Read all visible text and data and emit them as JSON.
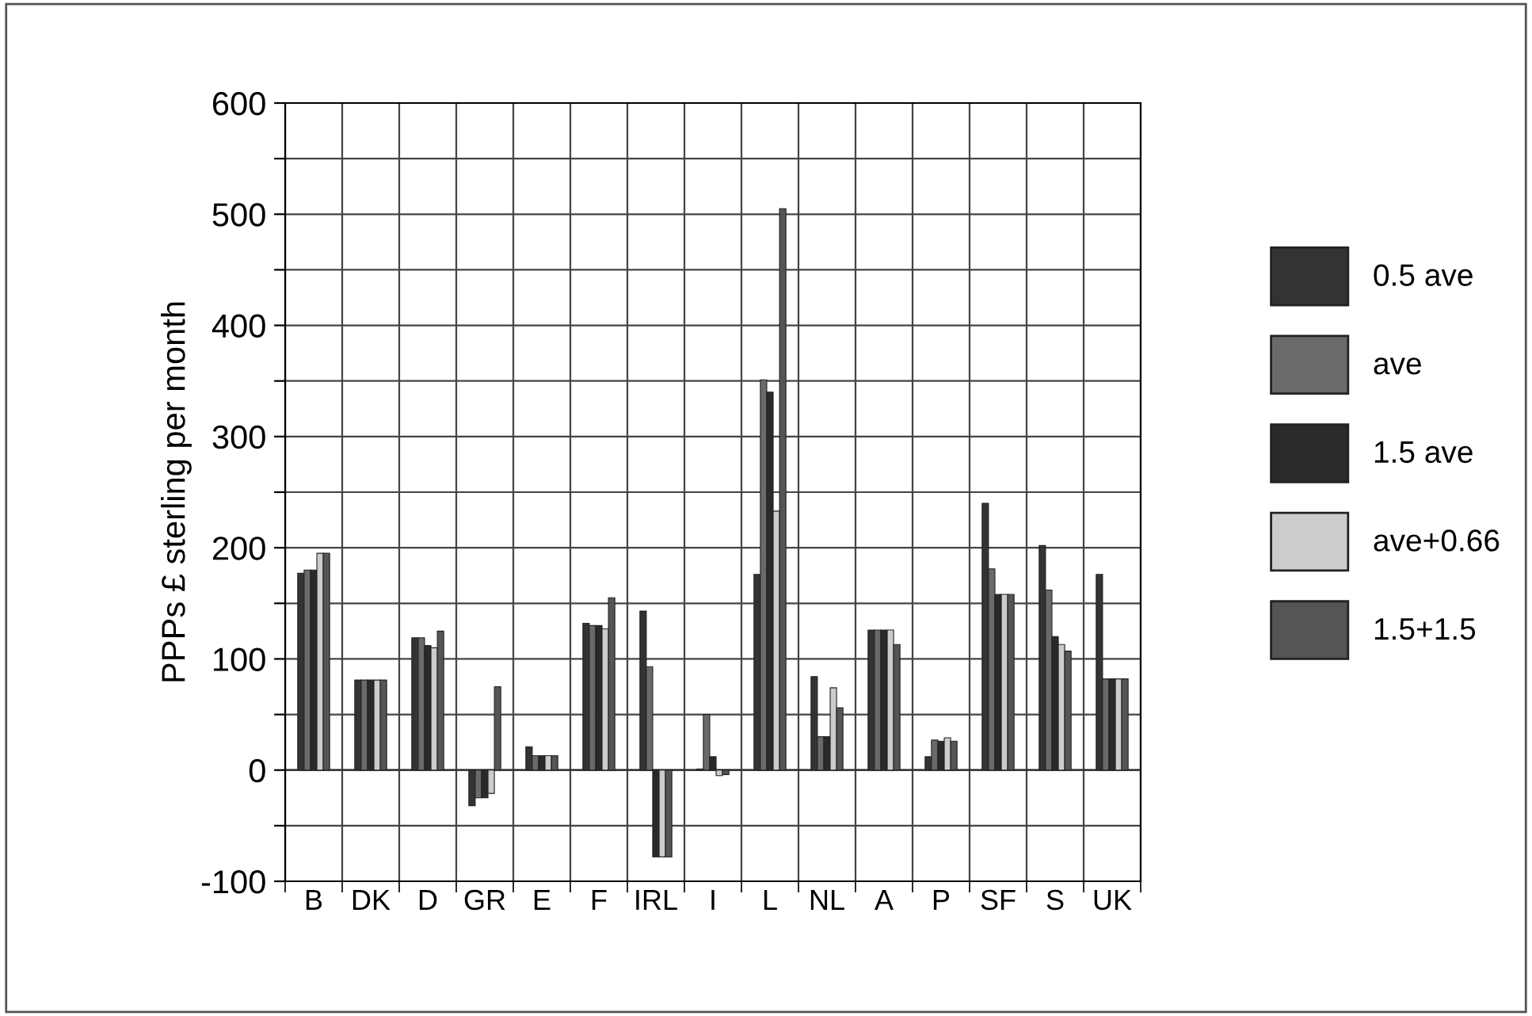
{
  "chart_data": {
    "type": "bar",
    "ylabel": "PPPs £ sterling per month",
    "categories": [
      "B",
      "DK",
      "D",
      "GR",
      "E",
      "F",
      "IRL",
      "I",
      "L",
      "NL",
      "A",
      "P",
      "SF",
      "S",
      "UK"
    ],
    "series": [
      {
        "name": "0.5 ave",
        "color": "#333333",
        "values": [
          177,
          81,
          119,
          -32,
          21,
          132,
          143,
          1,
          176,
          84,
          126,
          12,
          240,
          202,
          176
        ]
      },
      {
        "name": "ave",
        "color": "#6a6a6a",
        "values": [
          180,
          81,
          119,
          -25,
          13,
          130,
          93,
          50,
          351,
          30,
          126,
          27,
          181,
          162,
          82
        ]
      },
      {
        "name": "1.5 ave",
        "color": "#2a2a2a",
        "values": [
          180,
          81,
          112,
          -25,
          13,
          130,
          -78,
          12,
          340,
          30,
          126,
          26,
          158,
          120,
          82
        ]
      },
      {
        "name": "ave+0.66",
        "color": "#cccccc",
        "values": [
          195,
          81,
          110,
          -21,
          13,
          127,
          -78,
          -5,
          233,
          74,
          126,
          29,
          158,
          113,
          82
        ]
      },
      {
        "name": "1.5+1.5",
        "color": "#555555",
        "values": [
          195,
          81,
          125,
          75,
          13,
          155,
          -78,
          -4,
          505,
          56,
          113,
          26,
          158,
          107,
          82
        ]
      }
    ],
    "ylim": [
      -100,
      600
    ],
    "yticks": [
      -100,
      {
        "value": -50,
        "label": null
      },
      0,
      {
        "value": 50,
        "label": null
      },
      100,
      {
        "value": 150,
        "label": null
      },
      200,
      {
        "value": 250,
        "label": null
      },
      300,
      {
        "value": 350,
        "label": null
      },
      400,
      {
        "value": 450,
        "label": null
      },
      500,
      {
        "value": 550,
        "label": null
      },
      600
    ],
    "grid": true,
    "legend": "right"
  }
}
